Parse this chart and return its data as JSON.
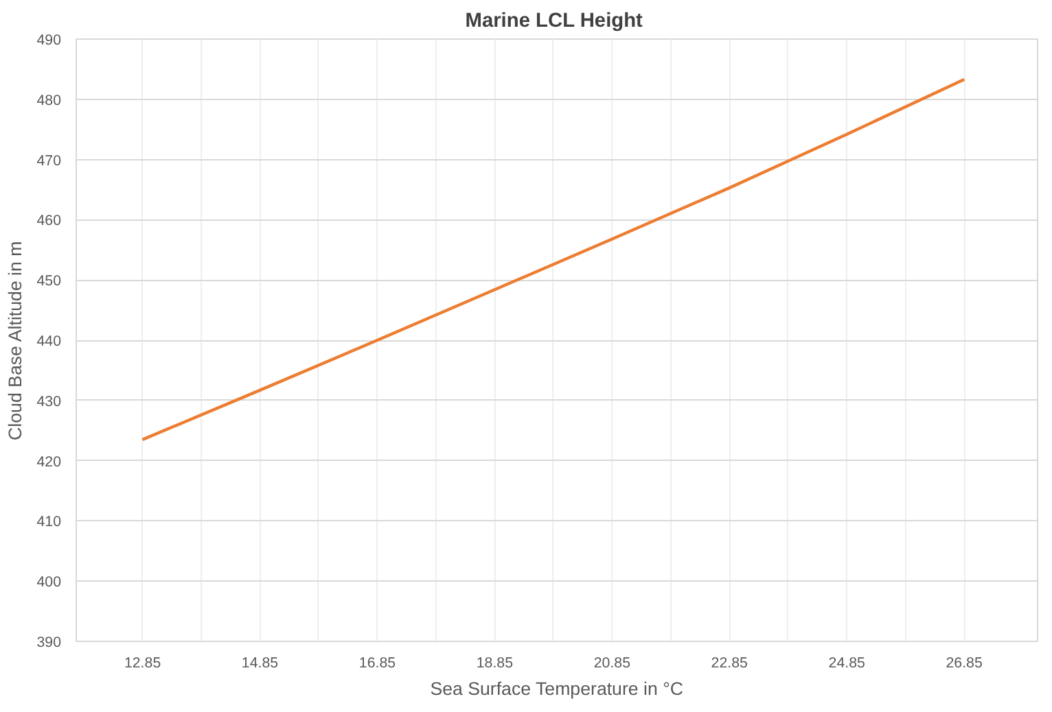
{
  "chart_data": {
    "type": "line",
    "title": "Marine  LCL Height",
    "xlabel": "Sea Surface Temperature in °C",
    "ylabel": "Cloud Base Altitude in m",
    "x": [
      12.85,
      14.85,
      16.85,
      18.85,
      20.85,
      22.85,
      24.85,
      26.85
    ],
    "series": [
      {
        "color": "#ed7d31",
        "values": [
          423.5,
          431.7,
          440.0,
          448.4,
          456.8,
          465.3,
          474.2,
          483.3
        ]
      }
    ],
    "xlim": [
      11.72,
      28.1
    ],
    "xticks": [
      12.85,
      {
        "value": 13.85,
        "label": null
      },
      14.85,
      {
        "value": 15.85,
        "label": null
      },
      16.85,
      {
        "value": 17.85,
        "label": null
      },
      18.85,
      {
        "value": 19.85,
        "label": null
      },
      20.85,
      {
        "value": 21.85,
        "label": null
      },
      22.85,
      {
        "value": 23.85,
        "label": null
      },
      24.85,
      {
        "value": 25.85,
        "label": null
      },
      26.85
    ],
    "ylim": [
      390,
      490
    ],
    "yticks": [
      390,
      400,
      410,
      420,
      430,
      440,
      450,
      460,
      470,
      480,
      490
    ],
    "grid": true,
    "marker": "none",
    "line_style": "solid"
  }
}
